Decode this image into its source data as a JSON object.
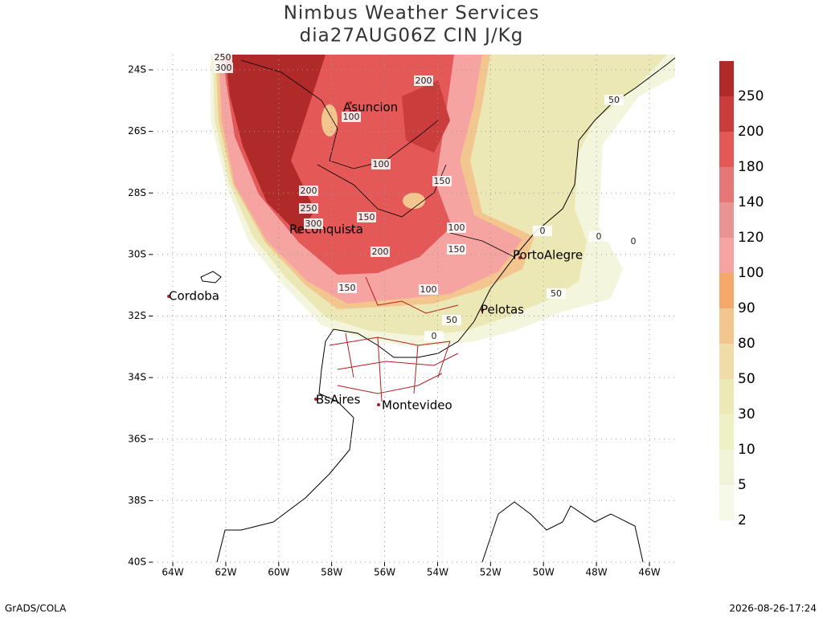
{
  "header": {
    "title": "Nimbus Weather Services",
    "subtitle": "dia27AUG06Z CIN J/Kg"
  },
  "lat_ticks": [
    {
      "value": -24,
      "label": "24S"
    },
    {
      "value": -26,
      "label": "26S"
    },
    {
      "value": -28,
      "label": "28S"
    },
    {
      "value": -30,
      "label": "30S"
    },
    {
      "value": -32,
      "label": "32S"
    },
    {
      "value": -34,
      "label": "34S"
    },
    {
      "value": -36,
      "label": "36S"
    },
    {
      "value": -38,
      "label": "38S"
    },
    {
      "value": -40,
      "label": "40S"
    }
  ],
  "lon_ticks": [
    {
      "value": -64,
      "label": "64W"
    },
    {
      "value": -62,
      "label": "62W"
    },
    {
      "value": -60,
      "label": "60W"
    },
    {
      "value": -58,
      "label": "58W"
    },
    {
      "value": -56,
      "label": "56W"
    },
    {
      "value": -54,
      "label": "54W"
    },
    {
      "value": -52,
      "label": "52W"
    },
    {
      "value": -50,
      "label": "50W"
    },
    {
      "value": -48,
      "label": "48W"
    },
    {
      "value": -46,
      "label": "46W"
    }
  ],
  "colorbar": {
    "levels": [
      2,
      5,
      10,
      30,
      50,
      80,
      90,
      100,
      120,
      140,
      180,
      200,
      250
    ],
    "colors": [
      "#f6f8e8",
      "#f2f4d8",
      "#eef0c6",
      "#ece9b6",
      "#efdca9",
      "#f3c58f",
      "#f6a86a",
      "#f5a4a2",
      "#e99393",
      "#e67777",
      "#e45858",
      "#cb3c3c",
      "#b12a2a"
    ]
  },
  "cities": [
    "Asuncion",
    "Reconquista",
    "PortoAlegre",
    "Cordoba",
    "Pelotas",
    "BsAires",
    "Montevideo"
  ],
  "contour_labels": [
    250,
    300,
    200,
    100,
    50,
    100,
    150,
    200,
    250,
    300,
    150,
    100,
    0,
    0,
    0,
    200,
    150,
    150,
    100,
    50,
    50,
    0
  ],
  "footer": {
    "left": "GrADS/COLA",
    "right": "2026-08-26-17:24"
  }
}
